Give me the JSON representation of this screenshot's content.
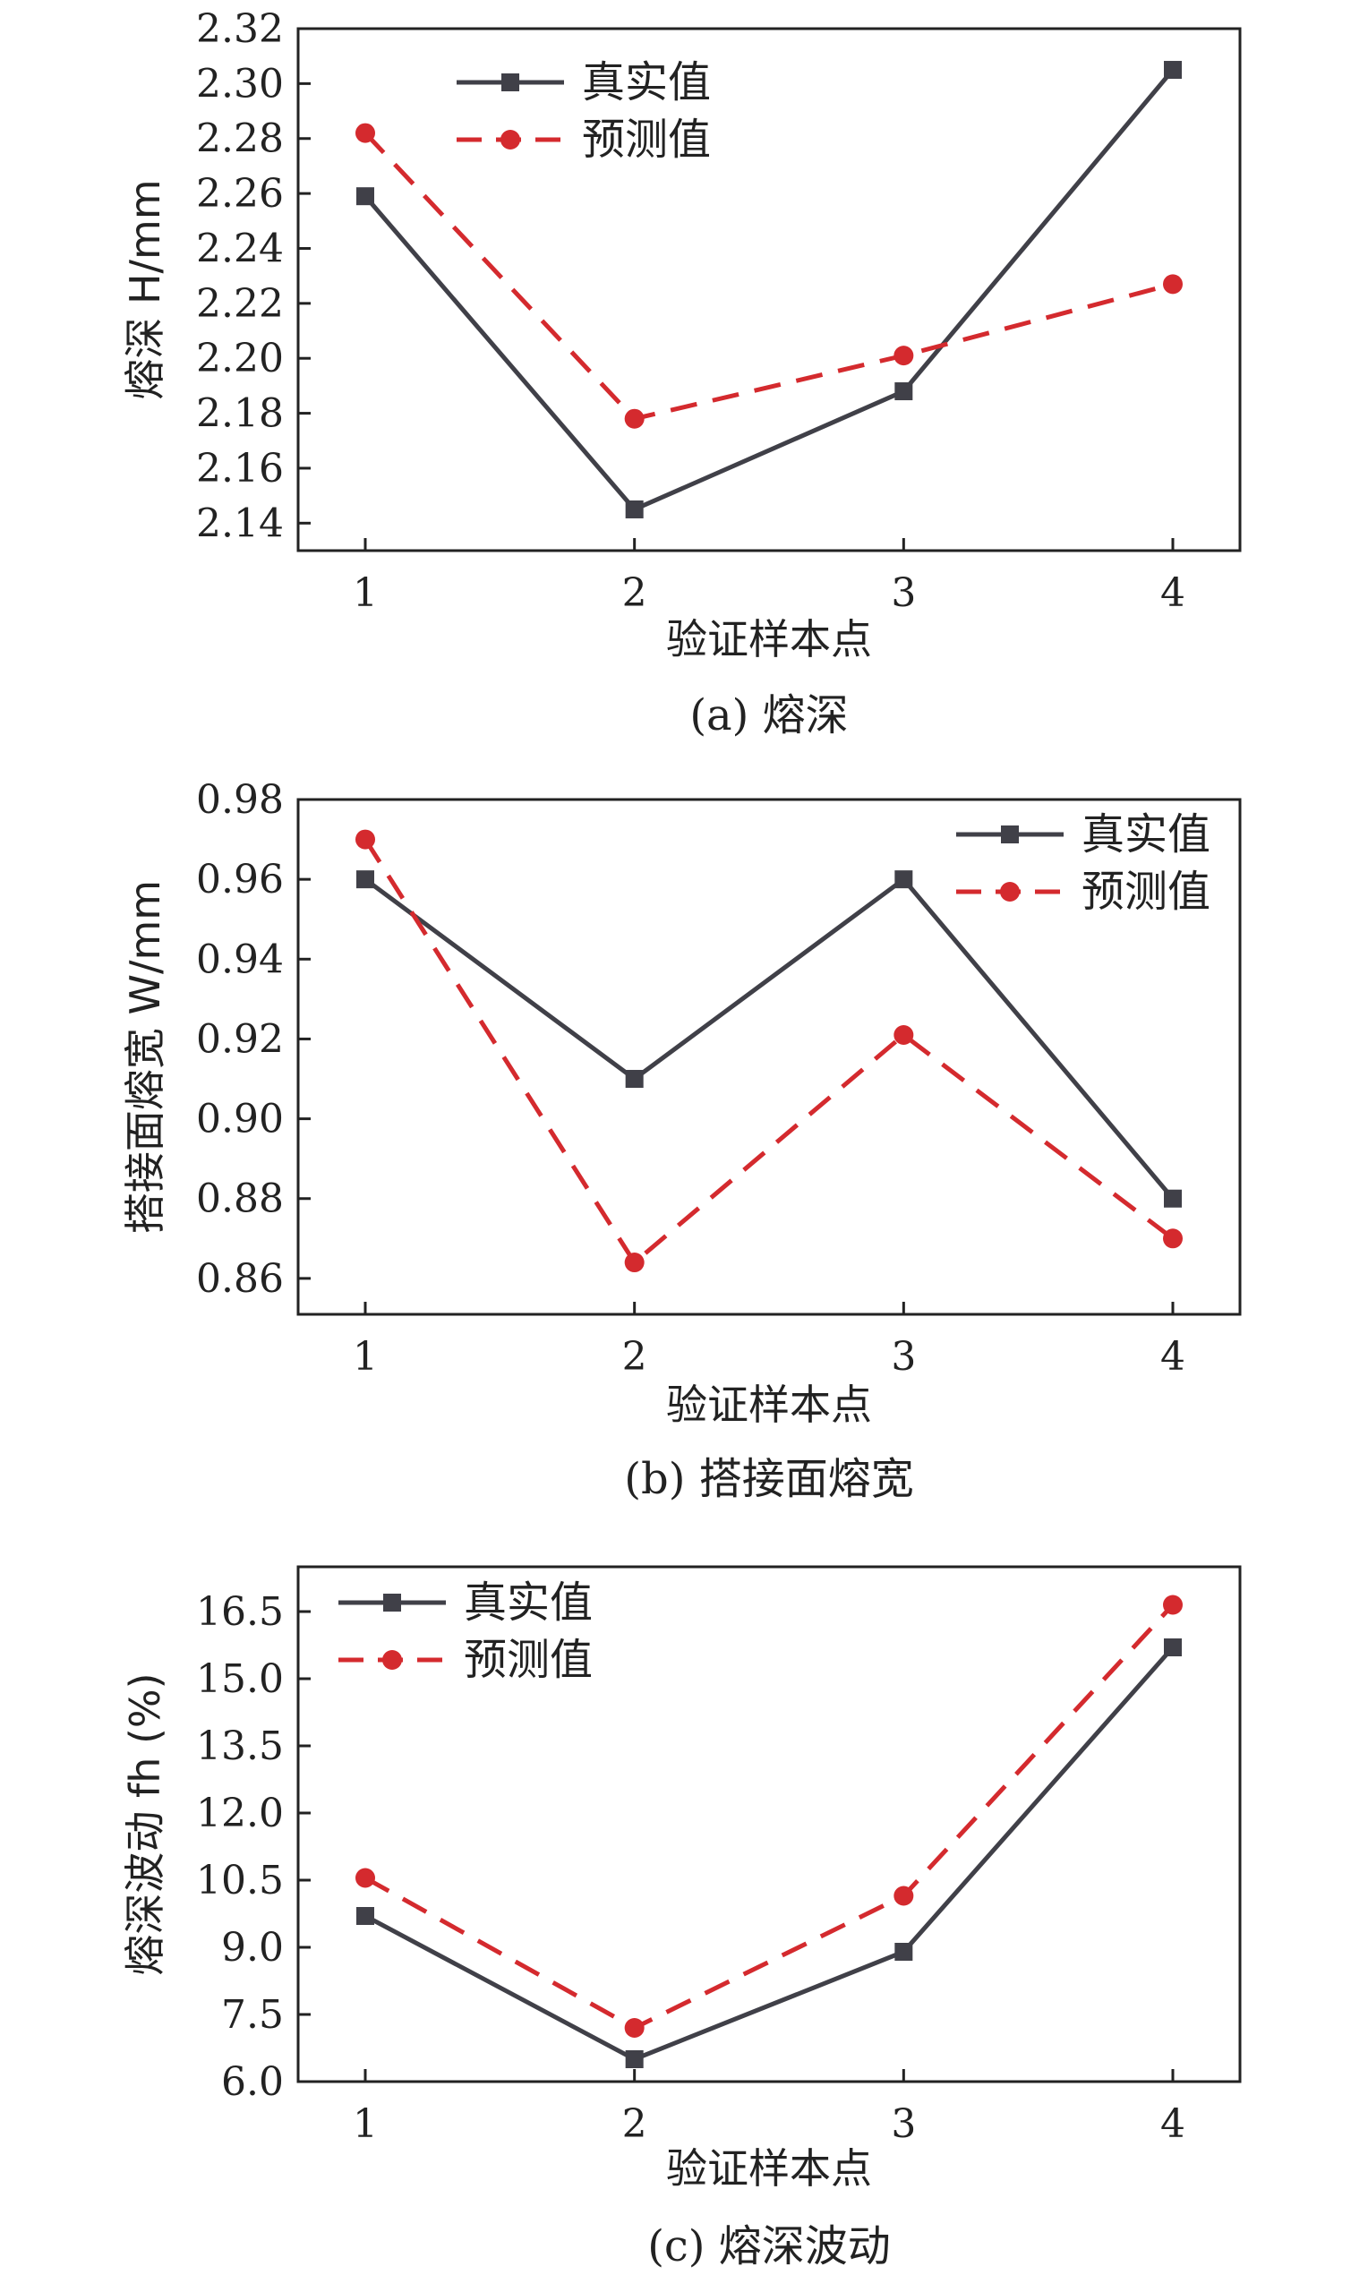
{
  "chart_data": [
    {
      "type": "line",
      "caption": "(a) 熔深",
      "xlabel": "验证样本点",
      "ylabel": "熔深 H/mm",
      "categories": [
        "1",
        "2",
        "3",
        "4"
      ],
      "yticks": [
        "2.14",
        "2.16",
        "2.18",
        "2.20",
        "2.22",
        "2.24",
        "2.26",
        "2.28",
        "2.30",
        "2.32"
      ],
      "ylim": [
        2.13,
        2.32
      ],
      "legend_position": "top-left",
      "series": [
        {
          "name": "真实值",
          "values": [
            2.259,
            2.145,
            2.188,
            2.305
          ],
          "color": "#404048",
          "marker": "square",
          "dash": "solid"
        },
        {
          "name": "预测值",
          "values": [
            2.282,
            2.178,
            2.201,
            2.227
          ],
          "color": "#d42a2e",
          "marker": "circle",
          "dash": "dashed"
        }
      ]
    },
    {
      "type": "line",
      "caption": "(b) 搭接面熔宽",
      "xlabel": "验证样本点",
      "ylabel": "搭接面熔宽 W/mm",
      "categories": [
        "1",
        "2",
        "3",
        "4"
      ],
      "yticks": [
        "0.86",
        "0.88",
        "0.90",
        "0.92",
        "0.94",
        "0.96",
        "0.98"
      ],
      "ylim": [
        0.851,
        0.98
      ],
      "legend_position": "top-right",
      "series": [
        {
          "name": "真实值",
          "values": [
            0.96,
            0.91,
            0.96,
            0.88
          ],
          "color": "#404048",
          "marker": "square",
          "dash": "solid"
        },
        {
          "name": "预测值",
          "values": [
            0.97,
            0.864,
            0.921,
            0.87
          ],
          "color": "#d42a2e",
          "marker": "circle",
          "dash": "dashed"
        }
      ]
    },
    {
      "type": "line",
      "caption": "(c) 熔深波动",
      "xlabel": "验证样本点",
      "ylabel": "熔深波动 fh (%)",
      "categories": [
        "1",
        "2",
        "3",
        "4"
      ],
      "yticks": [
        "6.0",
        "7.5",
        "9.0",
        "10.5",
        "12.0",
        "13.5",
        "15.0",
        "16.5"
      ],
      "ylim": [
        6.0,
        17.5
      ],
      "legend_position": "top-left",
      "series": [
        {
          "name": "真实值",
          "values": [
            9.7,
            6.5,
            8.9,
            15.7
          ],
          "color": "#404048",
          "marker": "square",
          "dash": "solid"
        },
        {
          "name": "预测值",
          "values": [
            10.55,
            7.2,
            10.15,
            16.65
          ],
          "color": "#d42a2e",
          "marker": "circle",
          "dash": "dashed"
        }
      ]
    }
  ]
}
